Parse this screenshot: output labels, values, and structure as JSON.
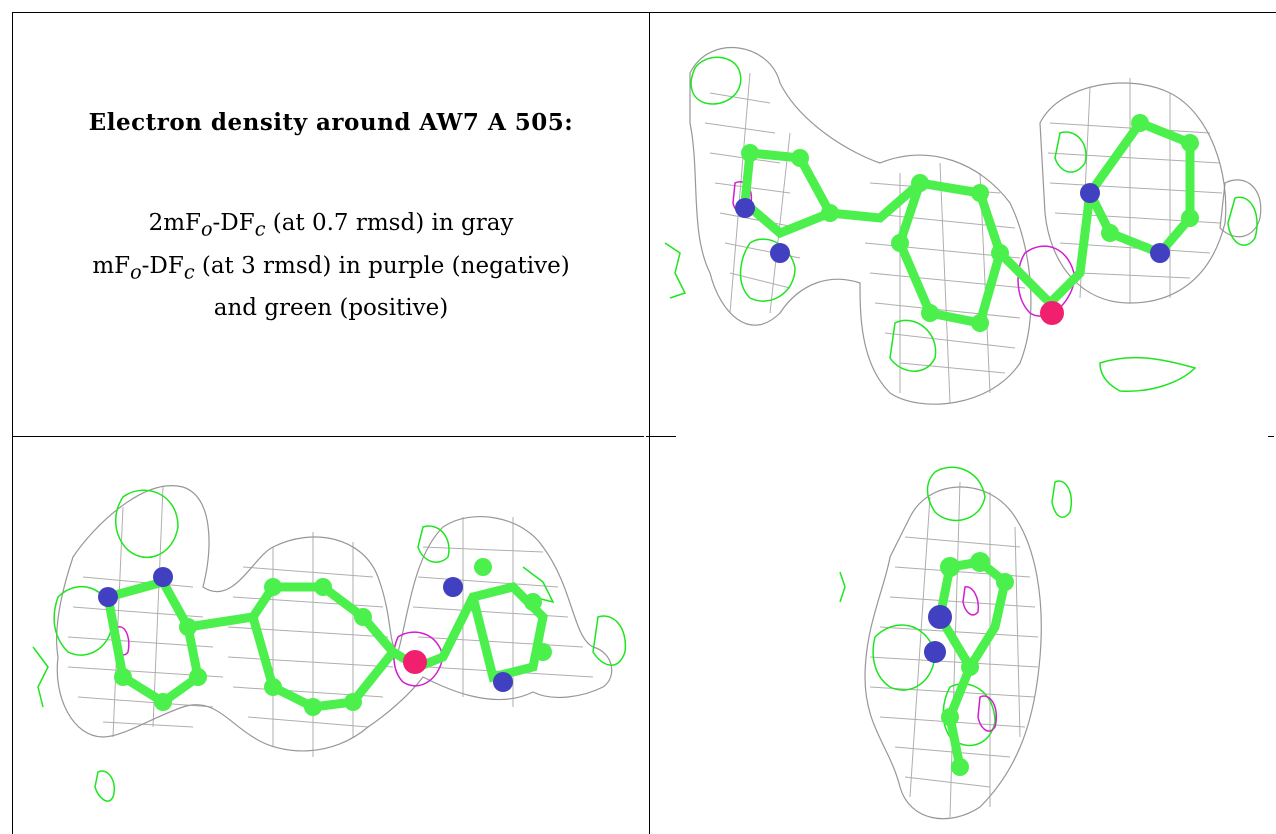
{
  "caption": {
    "title": "Electron density around AW7 A 505:",
    "line1_main": "2mF",
    "line1_sub1": "o",
    "line1_mid": "-DF",
    "line1_sub2": "c",
    "line1_rest": " (at 0.7 rmsd) in gray",
    "line2_main": "mF",
    "line2_sub1": "o",
    "line2_mid": "-DF",
    "line2_sub2": "c",
    "line2_rest": " (at 3 rmsd) in purple (negative)",
    "line3": "and green (positive)"
  },
  "colors": {
    "map_2fofc": "#8c8c8c",
    "map_fofc_negative": "#d21ed2",
    "map_fofc_positive": "#1ee61e",
    "carbon": "#4cf04c",
    "nitrogen": "#4040c0",
    "oxygen": "#f0206e"
  },
  "views": [
    "view-1",
    "view-2",
    "view-3"
  ]
}
